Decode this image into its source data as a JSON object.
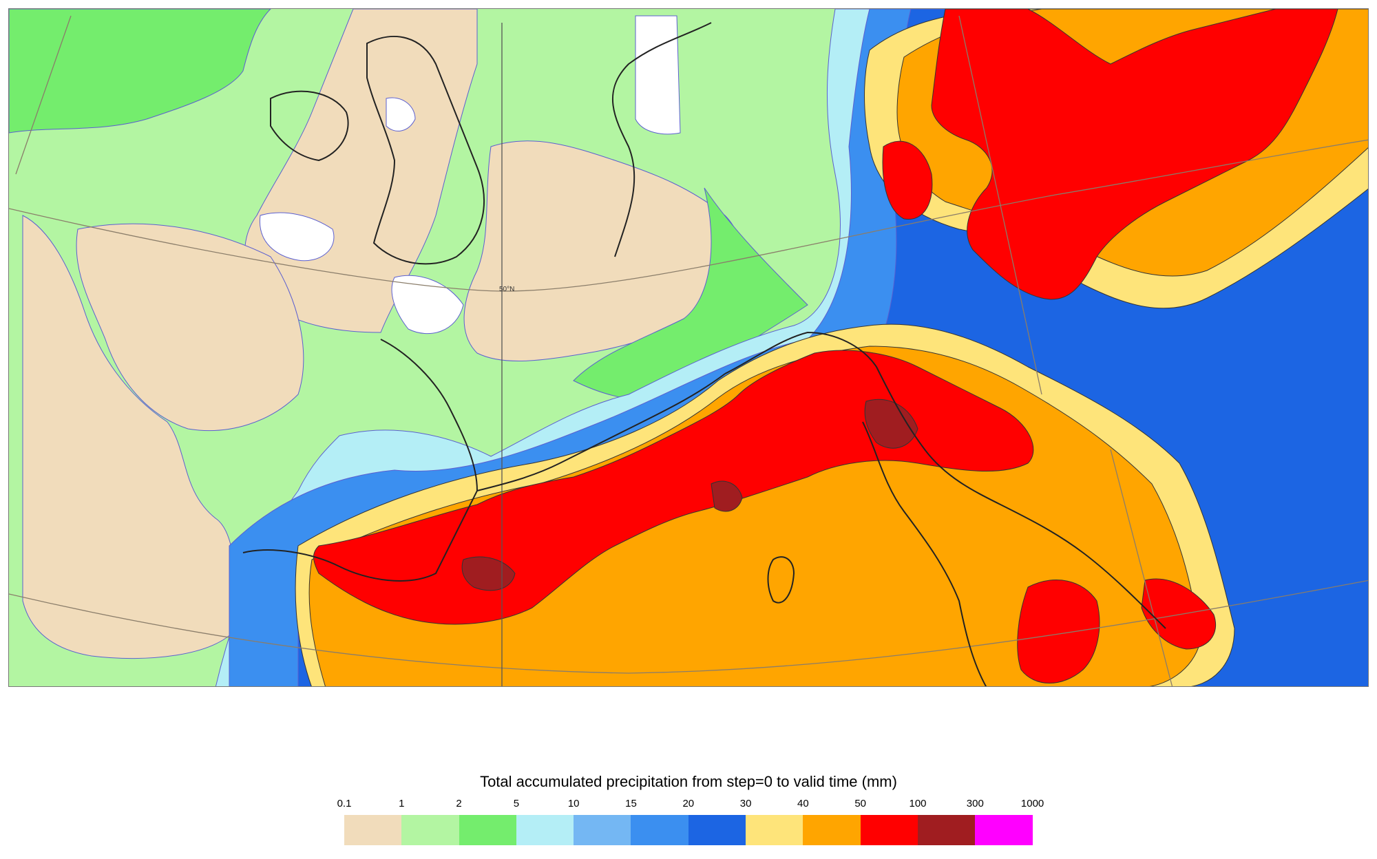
{
  "legend": {
    "title": "Total accumulated precipitation from step=0 to valid time (mm)",
    "ticks": [
      "0.1",
      "1",
      "2",
      "5",
      "10",
      "15",
      "20",
      "30",
      "40",
      "50",
      "100",
      "300",
      "1000"
    ],
    "colors": [
      "#f1dcbb",
      "#b3f5a2",
      "#74ed6d",
      "#b4eef6",
      "#74b7f3",
      "#3b8ff0",
      "#1c65e3",
      "#fee47a",
      "#ffa500",
      "#ff0000",
      "#a01d20",
      "#ff00ff"
    ]
  },
  "map": {
    "graticule_label": "50°N",
    "land_color": "#f1dcbb",
    "coastline_color": "#222222"
  }
}
